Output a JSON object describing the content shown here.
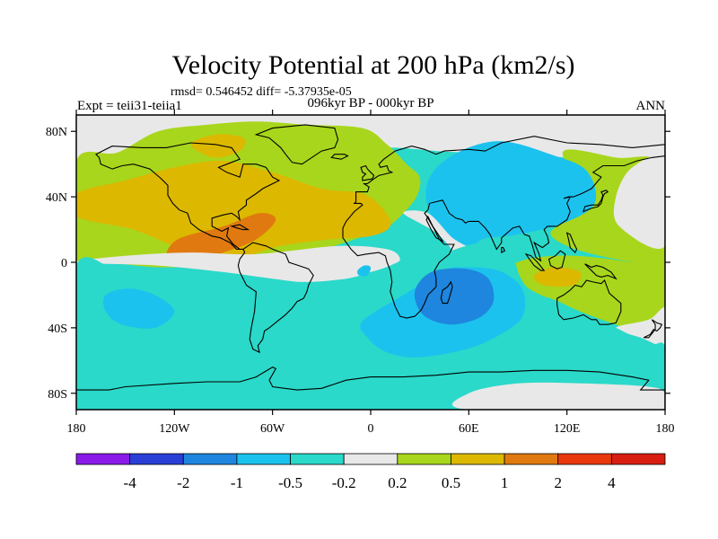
{
  "chart_data": {
    "type": "heatmap",
    "title": "Velocity Potential at 200 hPa (km2/s)",
    "stats_line": "rmsd= 0.546452 diff= -5.37935e-05",
    "left_label": "Expt = teii31-teiia1",
    "center_label": "096kyr BP - 000kyr BP",
    "right_label": "ANN",
    "x_ticks": [
      {
        "value": -180,
        "label": "180"
      },
      {
        "value": -120,
        "label": "120W"
      },
      {
        "value": -60,
        "label": "60W"
      },
      {
        "value": 0,
        "label": "0"
      },
      {
        "value": 60,
        "label": "60E"
      },
      {
        "value": 120,
        "label": "120E"
      },
      {
        "value": 180,
        "label": "180"
      }
    ],
    "y_ticks": [
      {
        "value": 80,
        "label": "80N"
      },
      {
        "value": 40,
        "label": "40N"
      },
      {
        "value": 0,
        "label": "0"
      },
      {
        "value": -40,
        "label": "40S"
      },
      {
        "value": -80,
        "label": "80S"
      }
    ],
    "xlim": [
      -180,
      180
    ],
    "ylim": [
      -90,
      90
    ],
    "levels": [
      -4,
      -2,
      -1,
      -0.5,
      -0.2,
      0.2,
      0.5,
      1,
      2,
      4
    ],
    "level_labels": [
      "-4",
      "-2",
      "-1",
      "-0.5",
      "-0.2",
      "0.2",
      "0.5",
      "1",
      "2",
      "4"
    ],
    "colors": [
      "#8a1ae8",
      "#2a3fd6",
      "#1e86de",
      "#1cc2ee",
      "#2ad9c9",
      "#e8e8e8",
      "#a8d61c",
      "#dcb800",
      "#e07a10",
      "#e8380c",
      "#d81e12"
    ],
    "regions": [
      {
        "level": 5,
        "name": "north-polar-neutral",
        "ring": [
          [
            -180,
            90
          ],
          [
            180,
            90
          ],
          [
            180,
            63
          ],
          [
            150,
            62
          ],
          [
            120,
            64
          ],
          [
            90,
            66
          ],
          [
            60,
            67
          ],
          [
            40,
            68
          ],
          [
            15,
            70
          ],
          [
            -10,
            69
          ],
          [
            -40,
            64
          ],
          [
            -70,
            68
          ],
          [
            -100,
            70
          ],
          [
            -130,
            68
          ],
          [
            -160,
            64
          ],
          [
            -180,
            62
          ]
        ]
      },
      {
        "level": 6,
        "name": "north-positive-belt",
        "ring": [
          [
            -180,
            62
          ],
          [
            -155,
            67
          ],
          [
            -130,
            80
          ],
          [
            -100,
            84
          ],
          [
            -70,
            86
          ],
          [
            -40,
            84
          ],
          [
            -5,
            82
          ],
          [
            10,
            72
          ],
          [
            22,
            60
          ],
          [
            30,
            52
          ],
          [
            28,
            40
          ],
          [
            18,
            28
          ],
          [
            10,
            22
          ],
          [
            -10,
            14
          ],
          [
            -30,
            8
          ],
          [
            -60,
            2
          ],
          [
            -95,
            -2
          ],
          [
            -130,
            -3
          ],
          [
            -160,
            0
          ],
          [
            -180,
            2
          ]
        ]
      },
      {
        "level": 7,
        "name": "atlantic-orange-band",
        "ring": [
          [
            -180,
            42
          ],
          [
            -150,
            50
          ],
          [
            -120,
            58
          ],
          [
            -90,
            62
          ],
          [
            -60,
            55
          ],
          [
            -30,
            45
          ],
          [
            -5,
            42
          ],
          [
            8,
            32
          ],
          [
            12,
            22
          ],
          [
            0,
            16
          ],
          [
            -25,
            14
          ],
          [
            -55,
            10
          ],
          [
            -85,
            2
          ],
          [
            -115,
            8
          ],
          [
            -145,
            20
          ],
          [
            -180,
            28
          ]
        ]
      },
      {
        "level": 8,
        "name": "caribbean-max",
        "ring": [
          [
            -125,
            2
          ],
          [
            -118,
            14
          ],
          [
            -90,
            22
          ],
          [
            -68,
            30
          ],
          [
            -58,
            26
          ],
          [
            -70,
            14
          ],
          [
            -90,
            6
          ],
          [
            -112,
            -1
          ]
        ]
      },
      {
        "level": 7,
        "name": "north-atlantic-orange-lobe",
        "ring": [
          [
            -110,
            72
          ],
          [
            -95,
            78
          ],
          [
            -78,
            76
          ],
          [
            -80,
            68
          ],
          [
            -96,
            64
          ]
        ]
      },
      {
        "level": 6,
        "name": "east-asia-belt",
        "ring": [
          [
            118,
            68
          ],
          [
            150,
            64
          ],
          [
            180,
            58
          ],
          [
            180,
            -5
          ],
          [
            160,
            0
          ],
          [
            140,
            4
          ],
          [
            120,
            10
          ],
          [
            110,
            18
          ],
          [
            122,
            28
          ],
          [
            128,
            45
          ]
        ]
      },
      {
        "level": 5,
        "name": "west-pacific-neutral",
        "ring": [
          [
            180,
            62
          ],
          [
            160,
            58
          ],
          [
            150,
            40
          ],
          [
            152,
            22
          ],
          [
            180,
            10
          ]
        ]
      },
      {
        "level": 3,
        "name": "central-asia-negative",
        "ring": [
          [
            34,
            38
          ],
          [
            38,
            55
          ],
          [
            55,
            68
          ],
          [
            80,
            74
          ],
          [
            110,
            66
          ],
          [
            132,
            56
          ],
          [
            137,
            36
          ],
          [
            118,
            24
          ],
          [
            90,
            17
          ],
          [
            68,
            14
          ],
          [
            58,
            4
          ],
          [
            44,
            14
          ]
        ]
      },
      {
        "level": 5,
        "name": "east-africa-neutral-tongue",
        "ring": [
          [
            20,
            30
          ],
          [
            40,
            18
          ],
          [
            52,
            5
          ],
          [
            58,
            -2
          ],
          [
            64,
            6
          ],
          [
            50,
            15
          ],
          [
            35,
            30
          ]
        ]
      },
      {
        "level": 6,
        "name": "indo-pacific-positive",
        "ring": [
          [
            82,
            -6
          ],
          [
            96,
            2
          ],
          [
            125,
            4
          ],
          [
            160,
            0
          ],
          [
            180,
            -4
          ],
          [
            180,
            -30
          ],
          [
            165,
            -42
          ],
          [
            150,
            -38
          ],
          [
            128,
            -30
          ],
          [
            110,
            -22
          ],
          [
            92,
            -18
          ]
        ]
      },
      {
        "level": 7,
        "name": "maritime-continent-orange",
        "ring": [
          [
            100,
            -8
          ],
          [
            112,
            -3
          ],
          [
            128,
            -6
          ],
          [
            124,
            -14
          ],
          [
            106,
            -14
          ]
        ]
      },
      {
        "level": 5,
        "name": "south-pacific-neutral",
        "ring": [
          [
            150,
            -40
          ],
          [
            165,
            -46
          ],
          [
            180,
            -50
          ],
          [
            180,
            -28
          ],
          [
            170,
            -35
          ]
        ]
      },
      {
        "level": 5,
        "name": "south-atlantic-neutral-tongue",
        "ring": [
          [
            -180,
            0
          ],
          [
            -130,
            -2
          ],
          [
            -90,
            -6
          ],
          [
            -60,
            -10
          ],
          [
            -40,
            -12
          ],
          [
            -15,
            -10
          ],
          [
            0,
            -6
          ],
          [
            12,
            -2
          ],
          [
            18,
            2
          ],
          [
            10,
            8
          ],
          [
            -20,
            10
          ],
          [
            -70,
            5
          ],
          [
            -110,
            6
          ],
          [
            -150,
            4
          ]
        ]
      },
      {
        "level": 4,
        "name": "southern-ocean-band",
        "ring": [
          [
            -180,
            -2
          ],
          [
            -150,
            -8
          ],
          [
            -120,
            -14
          ],
          [
            -100,
            -16
          ],
          [
            -70,
            -20
          ],
          [
            -40,
            -22
          ],
          [
            -20,
            -26
          ],
          [
            0,
            -24
          ],
          [
            8,
            -16
          ],
          [
            12,
            -6
          ],
          [
            30,
            -2
          ],
          [
            52,
            8
          ],
          [
            72,
            12
          ],
          [
            86,
            4
          ],
          [
            92,
            -10
          ],
          [
            100,
            -18
          ],
          [
            128,
            -30
          ],
          [
            150,
            -40
          ],
          [
            170,
            -50
          ],
          [
            180,
            -52
          ],
          [
            180,
            -90
          ],
          [
            -180,
            -90
          ]
        ]
      },
      {
        "level": 3,
        "name": "south-atlantic-indian-negative",
        "ring": [
          [
            -5,
            -36
          ],
          [
            20,
            -20
          ],
          [
            45,
            -5
          ],
          [
            58,
            -3
          ],
          [
            78,
            -5
          ],
          [
            92,
            -15
          ],
          [
            94,
            -30
          ],
          [
            86,
            -40
          ],
          [
            62,
            -52
          ],
          [
            30,
            -58
          ],
          [
            10,
            -55
          ],
          [
            -2,
            -46
          ]
        ]
      },
      {
        "level": 2,
        "name": "mozambique-min",
        "ring": [
          [
            27,
            -18
          ],
          [
            37,
            -6
          ],
          [
            58,
            -4
          ],
          [
            72,
            -10
          ],
          [
            75,
            -24
          ],
          [
            66,
            -34
          ],
          [
            48,
            -38
          ],
          [
            32,
            -32
          ]
        ]
      },
      {
        "level": 3,
        "name": "south-pacific-negative-blob",
        "ring": [
          [
            -162,
            -20
          ],
          [
            -148,
            -16
          ],
          [
            -132,
            -20
          ],
          [
            -120,
            -30
          ],
          [
            -132,
            -40
          ],
          [
            -152,
            -38
          ],
          [
            -162,
            -30
          ]
        ]
      },
      {
        "level": 3,
        "name": "west-african-negative-blob",
        "ring": [
          [
            -8,
            -5
          ],
          [
            -4,
            -2
          ],
          [
            0,
            -3
          ],
          [
            -2,
            -8
          ],
          [
            -7,
            -8
          ]
        ]
      },
      {
        "level": 5,
        "name": "antarctic-coast-neutral",
        "ring": [
          [
            60,
            -80
          ],
          [
            90,
            -74
          ],
          [
            130,
            -74
          ],
          [
            170,
            -76
          ],
          [
            180,
            -80
          ],
          [
            180,
            -90
          ],
          [
            60,
            -90
          ]
        ]
      }
    ]
  }
}
